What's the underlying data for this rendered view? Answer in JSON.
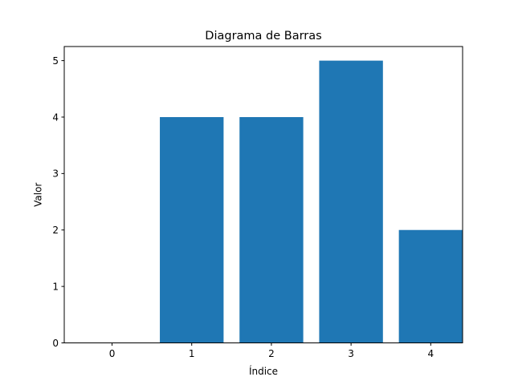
{
  "chart_data": {
    "type": "bar",
    "title": "Diagrama de Barras",
    "xlabel": "Índice",
    "ylabel": "Valor",
    "categories": [
      "0",
      "1",
      "2",
      "3",
      "4"
    ],
    "values": [
      0,
      4,
      4,
      5,
      2
    ],
    "xlim": [
      -0.6,
      4.4
    ],
    "ylim": [
      0,
      5.25
    ],
    "yticks": [
      "0",
      "1",
      "2",
      "3",
      "4",
      "5"
    ],
    "bar_color": "#1f77b4",
    "grid": false,
    "legend": "none"
  }
}
